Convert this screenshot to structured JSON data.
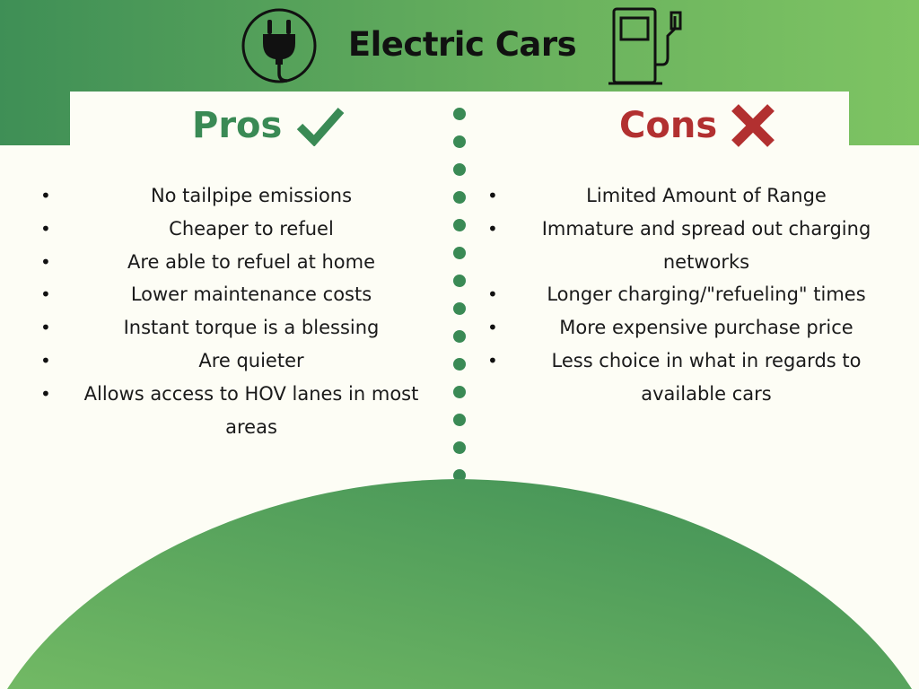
{
  "title": "Electric Cars",
  "pros": {
    "heading": "Pros",
    "items": [
      "No tailpipe emissions",
      "Cheaper to refuel",
      "Are able to refuel at home",
      "Lower maintenance costs",
      "Instant torque is a blessing",
      "Are quieter",
      "Allows access to HOV lanes in most areas"
    ]
  },
  "cons": {
    "heading": "Cons",
    "items": [
      "Limited Amount of Range",
      "Immature and spread out charging networks",
      "Longer charging/\"refueling\" times",
      "More expensive purchase price",
      "Less choice in what in regards to available cars"
    ]
  },
  "icons": {
    "plug": "plug-icon",
    "pump": "fuel-pump-icon",
    "pros_mark": "checkmark-icon",
    "cons_mark": "x-mark-icon"
  },
  "colors": {
    "green_dark": "#3f8f56",
    "green_light": "#7ec463",
    "pros": "#3a8a55",
    "cons": "#b23030",
    "background": "#fdfdf5"
  }
}
